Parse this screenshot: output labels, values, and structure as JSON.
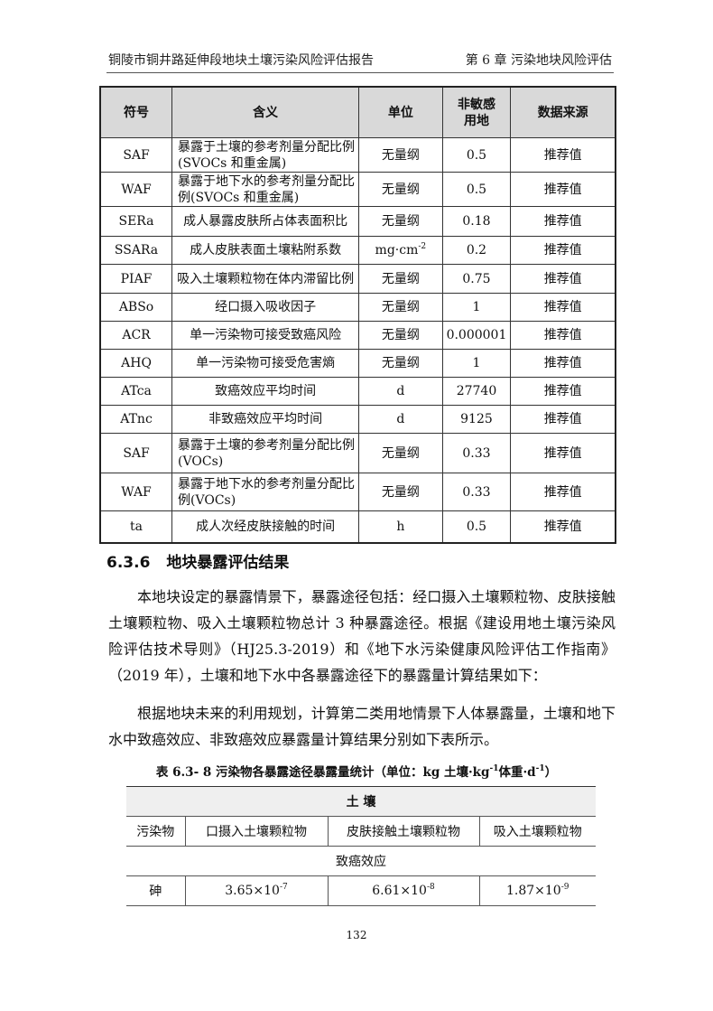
{
  "header": {
    "left": "铜陵市铜井路延伸段地块土壤污染风险评估报告",
    "right": "第 6 章  污染地块风险评估"
  },
  "param_table": {
    "columns": [
      "符号",
      "含义",
      "单位",
      "非敏感用地",
      "数据来源"
    ],
    "rows": [
      {
        "symbol": "SAF",
        "meaning": "暴露于土壤的参考剂量分配比例(SVOCs 和重金属)",
        "unit": "无量纲",
        "value": "0.5",
        "source": "推荐值"
      },
      {
        "symbol": "WAF",
        "meaning": "暴露于地下水的参考剂量分配比例(SVOCs 和重金属)",
        "unit": "无量纲",
        "value": "0.5",
        "source": "推荐值"
      },
      {
        "symbol": "SERa",
        "meaning": "成人暴露皮肤所占体表面积比",
        "unit": "无量纲",
        "value": "0.18",
        "source": "推荐值"
      },
      {
        "symbol": "SSARa",
        "meaning": "成人皮肤表面土壤粘附系数",
        "unit": "mg·cm",
        "unit_sup": "-2",
        "value": "0.2",
        "source": "推荐值"
      },
      {
        "symbol": "PIAF",
        "meaning": "吸入土壤颗粒物在体内滞留比例",
        "unit": "无量纲",
        "value": "0.75",
        "source": "推荐值"
      },
      {
        "symbol": "ABSo",
        "meaning": "经口摄入吸收因子",
        "unit": "无量纲",
        "value": "1",
        "source": "推荐值"
      },
      {
        "symbol": "ACR",
        "meaning": "单一污染物可接受致癌风险",
        "unit": "无量纲",
        "value": "0.000001",
        "source": "推荐值"
      },
      {
        "symbol": "AHQ",
        "meaning": "单一污染物可接受危害熵",
        "unit": "无量纲",
        "value": "1",
        "source": "推荐值"
      },
      {
        "symbol": "ATca",
        "meaning": "致癌效应平均时间",
        "unit": "d",
        "value": "27740",
        "source": "推荐值"
      },
      {
        "symbol": "ATnc",
        "meaning": "非致癌效应平均时间",
        "unit": "d",
        "value": "9125",
        "source": "推荐值"
      },
      {
        "symbol": "SAF",
        "meaning": "暴露于土壤的参考剂量分配比例(VOCs)",
        "unit": "无量纲",
        "value": "0.33",
        "source": "推荐值"
      },
      {
        "symbol": "WAF",
        "meaning": "暴露于地下水的参考剂量分配比例(VOCs)",
        "unit": "无量纲",
        "value": "0.33",
        "source": "推荐值"
      },
      {
        "symbol": "ta",
        "meaning": "成人次经皮肤接触的时间",
        "unit": "h",
        "value": "0.5",
        "source": "推荐值"
      }
    ]
  },
  "section": {
    "number": "6.3.6",
    "title": "地块暴露评估结果"
  },
  "paragraphs": [
    "本地块设定的暴露情景下，暴露途径包括：经口摄入土壤颗粒物、皮肤接触土壤颗粒物、吸入土壤颗粒物总计 3 种暴露途径。根据《建设用地土壤污染风险评估技术导则》（HJ25.3-2019）和《地下水污染健康风险评估工作指南》（2019 年），土壤和地下水中各暴露途径下的暴露量计算结果如下：",
    "根据地块未来的利用规划，计算第二类用地情景下人体暴露量，土壤和地下水中致癌效应、非致癌效应暴露量计算结果分别如下表所示。"
  ],
  "exposure_table": {
    "caption": "表 6.3- 8 污染物各暴露途径暴露量统计（单位：kg 土壤·kg",
    "caption_sup1": "-1",
    "caption_mid": "体重·d",
    "caption_sup2": "-1",
    "caption_end": "）",
    "group": "土 壤",
    "columns": [
      "污染物",
      "口摄入土壤颗粒物",
      "皮肤接触土壤颗粒物",
      "吸入土壤颗粒物"
    ],
    "effect": "致癌效应",
    "rows": [
      {
        "pollutant": "砷",
        "v1": "3.65×10",
        "e1": "-7",
        "v2": "6.61×10",
        "e2": "-8",
        "v3": "1.87×10",
        "e3": "-9"
      }
    ]
  },
  "page_number": "132"
}
